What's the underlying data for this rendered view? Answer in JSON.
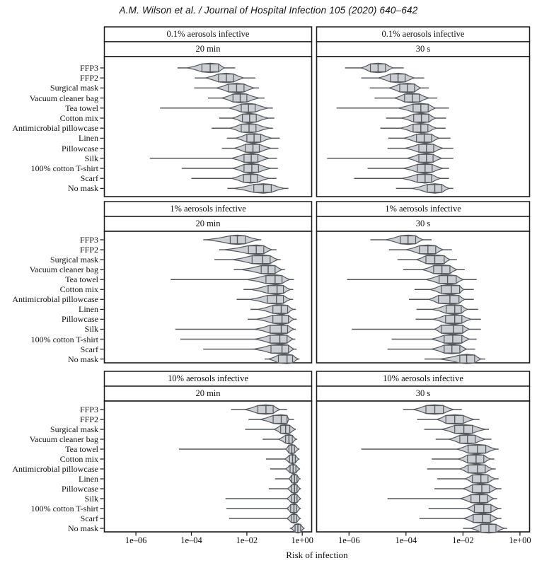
{
  "header": {
    "text": "A.M. Wilson et al. / Journal of Hospital Infection 105 (2020) 640–642"
  },
  "figure": {
    "xlabel": "Risk of infection",
    "x_tick_labels": [
      "1e–06",
      "1e–04",
      "1e–02",
      "1e+00"
    ],
    "x_tick_logs": [
      -6,
      -4,
      -2,
      0
    ],
    "x_range_log10": [
      -7.1,
      0.3
    ],
    "masks": [
      "FFP3",
      "FFP2",
      "Surgical mask",
      "Vacuum cleaner bag",
      "Tea towel",
      "Cotton mix",
      "Antimicrobial pillowcase",
      "Linen",
      "Pillowcase",
      "Silk",
      "100% cotton T-shirt",
      "Scarf",
      "No mask"
    ],
    "colors": {
      "violin_fill": "#ccd0d4",
      "violin_stroke": "#54585c",
      "panel_border": "#1b1b1b",
      "tick": "#222222",
      "text": "#111111",
      "background": "#ffffff"
    }
  },
  "chart_data": {
    "type": "violin",
    "orientation": "horizontal",
    "x_scale": "log10",
    "xlabel": "Risk of infection",
    "x_ticks": [
      "1e-06",
      "1e-04",
      "1e-02",
      "1e+00"
    ],
    "categories": [
      "FFP3",
      "FFP2",
      "Surgical mask",
      "Vacuum cleaner bag",
      "Tea towel",
      "Cotton mix",
      "Antimicrobial pillowcase",
      "Linen",
      "Pillowcase",
      "Silk",
      "100% cotton T-shirt",
      "Scarf",
      "No mask"
    ],
    "stats_order": [
      "whisker_lo",
      "body_lo",
      "q1",
      "median",
      "q3",
      "body_hi",
      "whisker_hi"
    ],
    "panels": [
      {
        "aerosol_label": "0.1% aerosols infective",
        "duration_label": "20 min",
        "grid": [
          0,
          0
        ],
        "rows_log10": [
          [
            -4.5,
            -4.15,
            -3.62,
            -3.32,
            -3.02,
            -2.8,
            -2.42
          ],
          [
            -3.88,
            -3.5,
            -3.02,
            -2.74,
            -2.48,
            -2.1,
            -1.69
          ],
          [
            -3.9,
            -3.1,
            -2.66,
            -2.37,
            -2.1,
            -1.73,
            -1.56
          ],
          [
            -3.4,
            -2.9,
            -2.5,
            -2.24,
            -2.0,
            -1.56,
            -1.36
          ],
          [
            -5.13,
            -2.65,
            -2.2,
            -1.94,
            -1.7,
            -1.23,
            -1.06
          ],
          [
            -3.0,
            -2.52,
            -2.16,
            -1.9,
            -1.66,
            -1.23,
            -1.01
          ],
          [
            -3.27,
            -2.62,
            -2.2,
            -1.92,
            -1.67,
            -1.18,
            -1.06
          ],
          [
            -2.72,
            -2.4,
            -2.0,
            -1.74,
            -1.5,
            -1.1,
            -0.81
          ],
          [
            -2.9,
            -2.45,
            -2.05,
            -1.78,
            -1.55,
            -1.13,
            -0.86
          ],
          [
            -5.5,
            -2.55,
            -2.1,
            -1.84,
            -1.6,
            -1.2,
            -0.91
          ],
          [
            -4.35,
            -2.5,
            -2.1,
            -1.82,
            -1.58,
            -1.15,
            -0.88
          ],
          [
            -4.0,
            -2.55,
            -2.12,
            -1.86,
            -1.62,
            -1.2,
            -0.93
          ],
          [
            -2.7,
            -2.45,
            -1.75,
            -1.4,
            -1.12,
            -0.65,
            -0.5
          ]
        ]
      },
      {
        "aerosol_label": "0.1% aerosols infective",
        "duration_label": "30 s",
        "grid": [
          0,
          1
        ],
        "rows_log10": [
          [
            -6.14,
            -5.57,
            -5.25,
            -4.98,
            -4.72,
            -4.45,
            -4.08
          ],
          [
            -5.57,
            -4.98,
            -4.55,
            -4.28,
            -4.03,
            -3.7,
            -3.36
          ],
          [
            -5.27,
            -4.6,
            -4.22,
            -3.95,
            -3.7,
            -3.48,
            -3.2
          ],
          [
            -5.1,
            -4.4,
            -4.05,
            -3.78,
            -3.53,
            -3.2,
            -2.9
          ],
          [
            -6.44,
            -4.28,
            -3.75,
            -3.48,
            -3.22,
            -2.96,
            -2.49
          ],
          [
            -4.7,
            -4.15,
            -3.73,
            -3.46,
            -3.2,
            -2.96,
            -2.59
          ],
          [
            -4.9,
            -4.2,
            -3.75,
            -3.48,
            -3.23,
            -2.93,
            -2.61
          ],
          [
            -4.62,
            -4.08,
            -3.63,
            -3.36,
            -3.1,
            -2.84,
            -2.44
          ],
          [
            -4.65,
            -4.03,
            -3.55,
            -3.28,
            -3.03,
            -2.71,
            -2.34
          ],
          [
            -6.77,
            -3.96,
            -3.55,
            -3.28,
            -3.05,
            -2.74,
            -2.34
          ],
          [
            -5.35,
            -4.08,
            -3.6,
            -3.33,
            -3.08,
            -2.71,
            -2.49
          ],
          [
            -5.82,
            -4.15,
            -3.6,
            -3.33,
            -3.1,
            -2.79,
            -2.49
          ],
          [
            -4.35,
            -3.78,
            -3.25,
            -2.99,
            -2.74,
            -2.49,
            -2.34
          ]
        ]
      },
      {
        "aerosol_label": "1% aerosols infective",
        "duration_label": "20 min",
        "grid": [
          1,
          0
        ],
        "rows_log10": [
          [
            -3.57,
            -3.45,
            -2.6,
            -2.34,
            -2.06,
            -1.56,
            -1.48
          ],
          [
            -3.0,
            -2.8,
            -1.94,
            -1.66,
            -1.39,
            -1.1,
            -0.93
          ],
          [
            -3.17,
            -2.5,
            -1.81,
            -1.43,
            -1.16,
            -0.88,
            -0.78
          ],
          [
            -2.47,
            -2.2,
            -1.48,
            -1.23,
            -0.98,
            -0.73,
            -0.63
          ],
          [
            -4.75,
            -2.0,
            -1.31,
            -0.98,
            -0.73,
            -0.45,
            -0.3
          ],
          [
            -2.12,
            -1.85,
            -1.23,
            -0.91,
            -0.68,
            -0.43,
            -0.33
          ],
          [
            -2.37,
            -1.9,
            -1.26,
            -0.93,
            -0.68,
            -0.43,
            -0.33
          ],
          [
            -1.87,
            -1.6,
            -1.06,
            -0.76,
            -0.53,
            -0.33,
            -0.23
          ],
          [
            -1.97,
            -1.65,
            -1.06,
            -0.73,
            -0.5,
            -0.3,
            -0.2
          ],
          [
            -4.58,
            -1.7,
            -1.16,
            -0.76,
            -0.53,
            -0.3,
            -0.23
          ],
          [
            -4.4,
            -1.7,
            -1.16,
            -0.81,
            -0.55,
            -0.33,
            -0.25
          ],
          [
            -3.57,
            -1.75,
            -1.13,
            -0.73,
            -0.5,
            -0.3,
            -0.2
          ],
          [
            -1.36,
            -1.21,
            -0.86,
            -0.55,
            -0.35,
            -0.15,
            -0.1
          ]
        ]
      },
      {
        "aerosol_label": "1% aerosols infective",
        "duration_label": "30 s",
        "grid": [
          1,
          1
        ],
        "rows_log10": [
          [
            -5.25,
            -4.7,
            -4.2,
            -3.93,
            -3.66,
            -3.4,
            -3.1
          ],
          [
            -4.6,
            -4.0,
            -3.53,
            -3.23,
            -2.96,
            -2.7,
            -2.39
          ],
          [
            -4.3,
            -3.63,
            -3.3,
            -2.99,
            -2.66,
            -2.46,
            -2.21
          ],
          [
            -4.1,
            -3.43,
            -3.03,
            -2.74,
            -2.46,
            -2.21,
            -1.94
          ],
          [
            -6.07,
            -3.3,
            -2.84,
            -2.54,
            -2.24,
            -1.99,
            -1.52
          ],
          [
            -3.7,
            -3.16,
            -2.76,
            -2.41,
            -2.12,
            -1.97,
            -1.62
          ],
          [
            -3.9,
            -3.2,
            -2.86,
            -2.46,
            -2.14,
            -1.94,
            -1.62
          ],
          [
            -3.63,
            -3.08,
            -2.59,
            -2.29,
            -2.06,
            -1.84,
            -1.47
          ],
          [
            -3.66,
            -3.05,
            -2.61,
            -2.29,
            -2.04,
            -1.72,
            -1.37
          ],
          [
            -5.9,
            -3.0,
            -2.76,
            -2.34,
            -2.01,
            -1.77,
            -1.37
          ],
          [
            -4.5,
            -3.1,
            -2.66,
            -2.36,
            -2.04,
            -1.77,
            -1.52
          ],
          [
            -4.65,
            -3.1,
            -2.66,
            -2.39,
            -2.11,
            -1.87,
            -1.57
          ],
          [
            -3.35,
            -2.8,
            -2.11,
            -1.87,
            -1.59,
            -1.37,
            -1.22
          ]
        ]
      },
      {
        "aerosol_label": "10% aerosols infective",
        "duration_label": "20 min",
        "grid": [
          2,
          0
        ],
        "rows_log10": [
          [
            -2.57,
            -2.06,
            -1.6,
            -1.31,
            -1.05,
            -0.81,
            -0.55
          ],
          [
            -1.94,
            -1.51,
            -1.05,
            -0.76,
            -0.55,
            -0.48,
            -0.3
          ],
          [
            -2.06,
            -1.01,
            -0.78,
            -0.6,
            -0.45,
            -0.25,
            -0.23
          ],
          [
            -1.43,
            -0.86,
            -0.6,
            -0.48,
            -0.36,
            -0.23,
            -0.18
          ],
          [
            -4.45,
            -0.6,
            -0.48,
            -0.38,
            -0.28,
            -0.13,
            -0.1
          ],
          [
            -1.31,
            -0.63,
            -0.46,
            -0.35,
            -0.25,
            -0.13,
            -0.1
          ],
          [
            -1.16,
            -0.6,
            -0.44,
            -0.33,
            -0.23,
            -0.1,
            -0.08
          ],
          [
            -0.98,
            -0.48,
            -0.38,
            -0.28,
            -0.19,
            -0.1,
            -0.06
          ],
          [
            -1.21,
            -0.53,
            -0.38,
            -0.28,
            -0.19,
            -0.08,
            -0.05
          ],
          [
            -2.77,
            -0.55,
            -0.4,
            -0.28,
            -0.19,
            -0.06,
            -0.05
          ],
          [
            -2.74,
            -0.55,
            -0.42,
            -0.3,
            -0.2,
            -0.08,
            -0.05
          ],
          [
            -2.64,
            -0.55,
            -0.4,
            -0.3,
            -0.2,
            -0.08,
            -0.05
          ],
          [
            -0.45,
            -0.4,
            -0.26,
            -0.16,
            -0.06,
            0.06,
            0.08
          ]
        ]
      },
      {
        "aerosol_label": "10% aerosols infective",
        "duration_label": "30 s",
        "grid": [
          2,
          1
        ],
        "rows_log10": [
          [
            -4.1,
            -3.73,
            -3.3,
            -2.99,
            -2.69,
            -2.34,
            -2.04
          ],
          [
            -3.61,
            -2.91,
            -2.6,
            -2.29,
            -1.99,
            -1.62,
            -1.42
          ],
          [
            -3.36,
            -2.74,
            -2.29,
            -1.97,
            -1.67,
            -1.22,
            -1.09
          ],
          [
            -2.96,
            -2.49,
            -2.11,
            -1.84,
            -1.57,
            -1.22,
            -1.0
          ],
          [
            -5.57,
            -2.21,
            -1.82,
            -1.49,
            -1.2,
            -0.85,
            -0.75
          ],
          [
            -3.1,
            -2.16,
            -1.84,
            -1.54,
            -1.27,
            -1.04,
            -0.9
          ],
          [
            -3.26,
            -2.11,
            -1.82,
            -1.49,
            -1.22,
            -0.97,
            -0.85
          ],
          [
            -2.9,
            -1.92,
            -1.67,
            -1.37,
            -1.12,
            -0.87,
            -0.75
          ],
          [
            -3.0,
            -1.99,
            -1.67,
            -1.34,
            -1.07,
            -0.8,
            -0.65
          ],
          [
            -4.65,
            -2.09,
            -1.72,
            -1.42,
            -1.14,
            -0.92,
            -0.8
          ],
          [
            -3.21,
            -1.87,
            -1.6,
            -1.27,
            -1.02,
            -0.75,
            -0.65
          ],
          [
            -3.53,
            -1.97,
            -1.64,
            -1.32,
            -1.04,
            -0.77,
            -0.65
          ],
          [
            -2.0,
            -1.72,
            -1.37,
            -1.09,
            -0.84,
            -0.55,
            -0.45
          ]
        ]
      }
    ]
  }
}
